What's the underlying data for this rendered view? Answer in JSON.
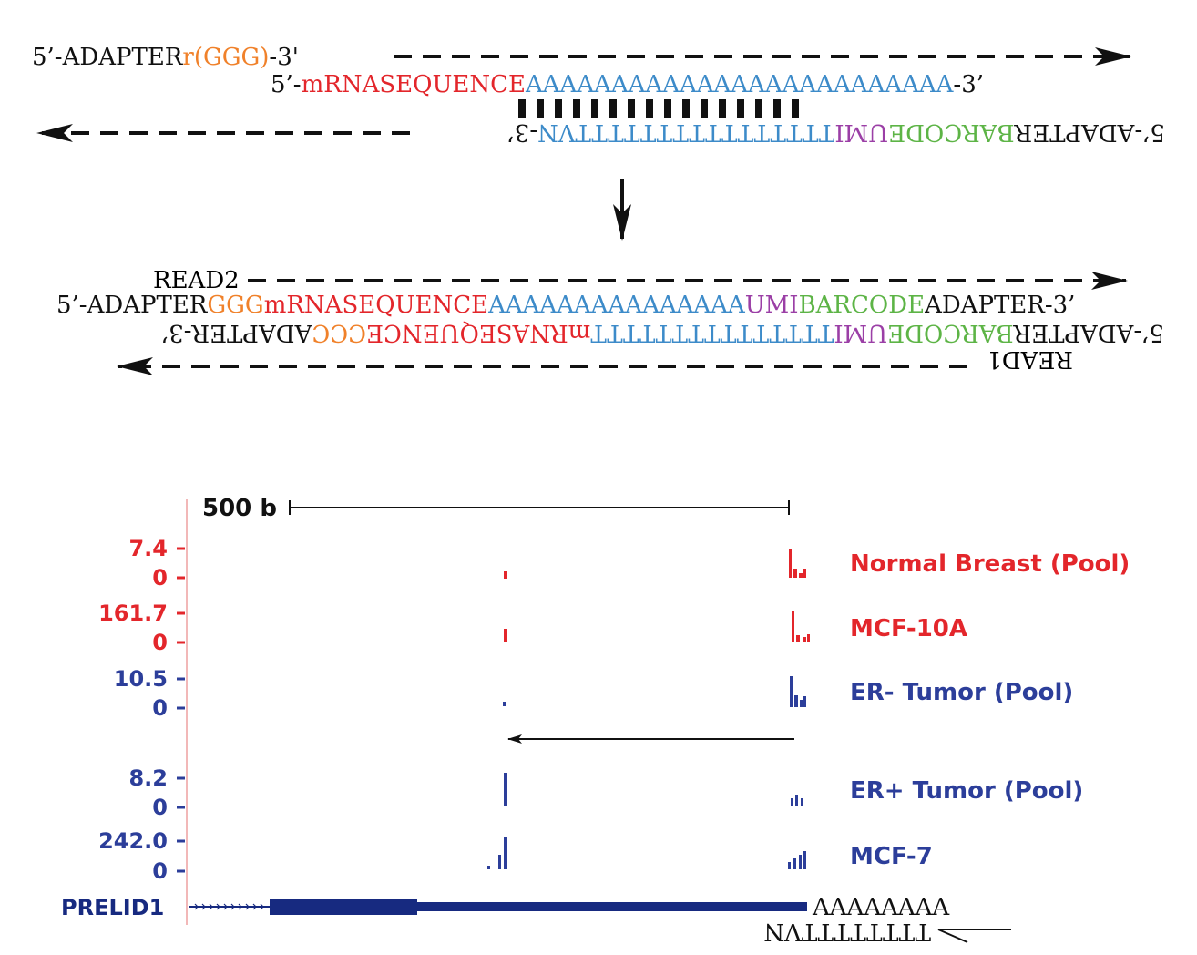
{
  "colors": {
    "black": "#111111",
    "orange": "#f0812a",
    "red": "#e3262b",
    "blue": "#3d8bc9",
    "purple": "#9b3fa6",
    "green": "#5db446",
    "track_red": "#e3262b",
    "track_blue": "#2c3e9a",
    "gene": "#172a80",
    "axis": "#f2b8b8"
  },
  "top": {
    "oligo_line": [
      {
        "t": "5’-ADAPTER",
        "c": "black"
      },
      {
        "t": "r(GGG)",
        "c": "orange"
      },
      {
        "t": "-3'",
        "c": "black"
      }
    ],
    "mrna_line": [
      {
        "t": "5’-",
        "c": "black"
      },
      {
        "t": "mRNASEQUENCE",
        "c": "red"
      },
      {
        "t": "AAAAAAAAAAAAAAAAAAAAAAAAA",
        "c": "blue"
      },
      {
        "t": "-3’",
        "c": "black"
      }
    ],
    "primer_line": [
      {
        "t": "5’-ADAPTER",
        "c": "black"
      },
      {
        "t": "BARCODE",
        "c": "green"
      },
      {
        "t": "UMI",
        "c": "purple"
      },
      {
        "t": "TTTTTTTTTTTTTTTTVN",
        "c": "blue"
      },
      {
        "t": "-3’",
        "c": "black"
      }
    ]
  },
  "middle": {
    "read2_label": "READ2",
    "read1_label": "READ1",
    "product_line": [
      {
        "t": "5’-ADAPTER",
        "c": "black"
      },
      {
        "t": "GGG",
        "c": "orange"
      },
      {
        "t": "mRNASEQUENCE",
        "c": "red"
      },
      {
        "t": "AAAAAAAAAAAAAAA",
        "c": "blue"
      },
      {
        "t": "UMI",
        "c": "purple"
      },
      {
        "t": "BARCODE",
        "c": "green"
      },
      {
        "t": "ADAPTER-3’",
        "c": "black"
      }
    ],
    "complement_line": [
      {
        "t": "5’-ADAPTER",
        "c": "black"
      },
      {
        "t": "BARCODE",
        "c": "green"
      },
      {
        "t": "UMI",
        "c": "purple"
      },
      {
        "t": "TTTTTTTTTTTTTTT",
        "c": "blue"
      },
      {
        "t": "mRNASEQUENCE",
        "c": "red"
      },
      {
        "t": "CCC",
        "c": "orange"
      },
      {
        "t": "ADAPTER-3’",
        "c": "black"
      }
    ]
  },
  "browser": {
    "scale_label": "500 b",
    "tracks": [
      {
        "name": "Normal Breast (Pool)",
        "max": "7.4",
        "min": "0",
        "color": "track_red"
      },
      {
        "name": "MCF-10A",
        "max": "161.7",
        "min": "0",
        "color": "track_red"
      },
      {
        "name": "ER- Tumor (Pool)",
        "max": "10.5",
        "min": "0",
        "color": "track_blue"
      },
      {
        "name": "ER+ Tumor (Pool)",
        "max": "8.2",
        "min": "0",
        "color": "track_blue"
      },
      {
        "name": "MCF-7",
        "max": "242.0",
        "min": "0",
        "color": "track_blue"
      }
    ],
    "gene_name": "PRELID1",
    "polya_label": "AAAAAAAA",
    "oligodt_label": "TTTTTTTTVN"
  }
}
